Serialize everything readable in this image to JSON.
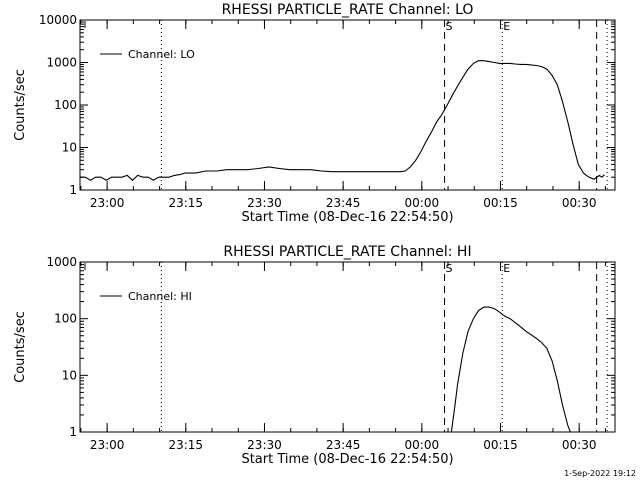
{
  "footer_text": "1-Sep-2022 19:12",
  "chart_data": [
    {
      "type": "line",
      "title": "RHESSI PARTICLE_RATE Channel: LO",
      "xlabel": "Start Time (08-Dec-16 22:54:50)",
      "ylabel": "Counts/sec",
      "y_scale": "log",
      "ylim": [
        1,
        10000
      ],
      "x_unit": "minutes since 22:54:50",
      "xlim": [
        0,
        102
      ],
      "x_tick_labels": [
        "23:00",
        "23:15",
        "23:30",
        "23:45",
        "00:00",
        "00:15",
        "00:30"
      ],
      "y_tick_labels": [
        "1",
        "10",
        "100",
        "1000",
        "10000"
      ],
      "legend": {
        "position": "top-left",
        "entries": [
          "Channel: LO"
        ]
      },
      "markers": [
        {
          "label": "",
          "x": 15.5,
          "style": "dotted"
        },
        {
          "label": "S",
          "x": 69.5,
          "style": "dashed"
        },
        {
          "label": "E",
          "x": 80.5,
          "style": "dotted"
        },
        {
          "label": "",
          "x": 98.5,
          "style": "dashed"
        },
        {
          "label": "",
          "x": 100.5,
          "style": "dotted"
        }
      ],
      "series": [
        {
          "name": "Channel: LO",
          "x": [
            0,
            1,
            2,
            3,
            4,
            5,
            6,
            7,
            8,
            9,
            10,
            11,
            12,
            13,
            14,
            15,
            16,
            17,
            18,
            19,
            20,
            22,
            24,
            26,
            28,
            30,
            32,
            34,
            36,
            38,
            40,
            42,
            44,
            46,
            48,
            50,
            52,
            54,
            56,
            58,
            60,
            61,
            62,
            63,
            64,
            65,
            66,
            67,
            68,
            69,
            70,
            71,
            72,
            73,
            74,
            75,
            76,
            77,
            78,
            79,
            80,
            81,
            82,
            83,
            84,
            85,
            86,
            87,
            88,
            89,
            90,
            91,
            92,
            93,
            94,
            95,
            96,
            97,
            98,
            99,
            99.5,
            100
          ],
          "y": [
            2,
            2,
            1.7,
            2,
            2,
            1.7,
            2,
            2,
            2,
            2.2,
            1.7,
            2.2,
            2,
            2,
            1.7,
            2,
            2,
            2,
            2.2,
            2.3,
            2.5,
            2.5,
            2.8,
            2.8,
            3,
            3,
            3,
            3.2,
            3.5,
            3.2,
            3,
            3,
            3,
            2.8,
            2.7,
            2.7,
            2.7,
            2.7,
            2.7,
            2.7,
            2.7,
            2.7,
            2.8,
            3.5,
            5,
            8,
            14,
            23,
            40,
            60,
            100,
            170,
            280,
            450,
            700,
            950,
            1100,
            1100,
            1050,
            1000,
            950,
            950,
            950,
            920,
            900,
            900,
            880,
            850,
            800,
            700,
            500,
            300,
            120,
            40,
            12,
            4,
            2.5,
            2,
            1.8,
            2.2,
            2,
            2.3
          ]
        }
      ]
    },
    {
      "type": "line",
      "title": "RHESSI PARTICLE_RATE Channel: HI",
      "xlabel": "Start Time (08-Dec-16 22:54:50)",
      "ylabel": "Counts/sec",
      "y_scale": "log",
      "ylim": [
        1,
        1000
      ],
      "x_unit": "minutes since 22:54:50",
      "xlim": [
        0,
        102
      ],
      "x_tick_labels": [
        "23:00",
        "23:15",
        "23:30",
        "23:45",
        "00:00",
        "00:15",
        "00:30"
      ],
      "y_tick_labels": [
        "1",
        "10",
        "100",
        "1000"
      ],
      "legend": {
        "position": "top-left",
        "entries": [
          "Channel: HI"
        ]
      },
      "markers": [
        {
          "label": "",
          "x": 15.5,
          "style": "dotted"
        },
        {
          "label": "S",
          "x": 69.5,
          "style": "dashed"
        },
        {
          "label": "E",
          "x": 80.5,
          "style": "dotted"
        },
        {
          "label": "",
          "x": 98.5,
          "style": "dashed"
        },
        {
          "label": "",
          "x": 100.5,
          "style": "dotted"
        }
      ],
      "series": [
        {
          "name": "Channel: HI",
          "x": [
            70.8,
            71.5,
            72,
            73,
            74,
            75,
            76,
            77,
            78,
            79,
            80,
            81,
            82,
            83,
            84,
            85,
            86,
            87,
            88,
            89,
            90,
            91,
            92,
            93,
            93.5
          ],
          "y": [
            1,
            3,
            7,
            25,
            60,
            100,
            140,
            160,
            160,
            150,
            130,
            110,
            100,
            85,
            72,
            60,
            52,
            45,
            38,
            30,
            18,
            8,
            3,
            1.3,
            1
          ]
        }
      ]
    }
  ]
}
